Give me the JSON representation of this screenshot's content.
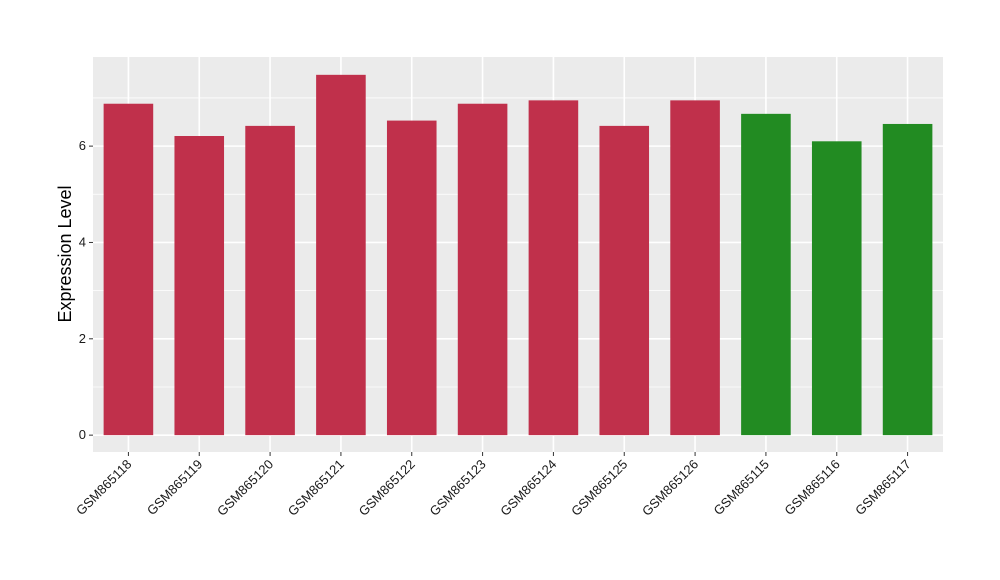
{
  "chart_data": {
    "type": "bar",
    "title": "",
    "xlabel": "",
    "ylabel": "Expression Level",
    "categories": [
      "GSM865118",
      "GSM865119",
      "GSM865120",
      "GSM865121",
      "GSM865122",
      "GSM865123",
      "GSM865124",
      "GSM865125",
      "GSM865126",
      "GSM865115",
      "GSM865116",
      "GSM865117"
    ],
    "values": [
      6.88,
      6.21,
      6.42,
      7.48,
      6.53,
      6.88,
      6.95,
      6.42,
      6.95,
      6.67,
      6.1,
      6.46
    ],
    "bar_colors": [
      "#c0304b",
      "#c0304b",
      "#c0304b",
      "#c0304b",
      "#c0304b",
      "#c0304b",
      "#c0304b",
      "#c0304b",
      "#c0304b",
      "#228b22",
      "#228b22",
      "#228b22"
    ],
    "ylim": [
      -0.35,
      7.85
    ],
    "yticks": [
      0,
      2,
      4,
      6
    ],
    "grid": true,
    "legend": "none",
    "panel_background": "#ebebeb",
    "grid_color": "#ffffff"
  }
}
